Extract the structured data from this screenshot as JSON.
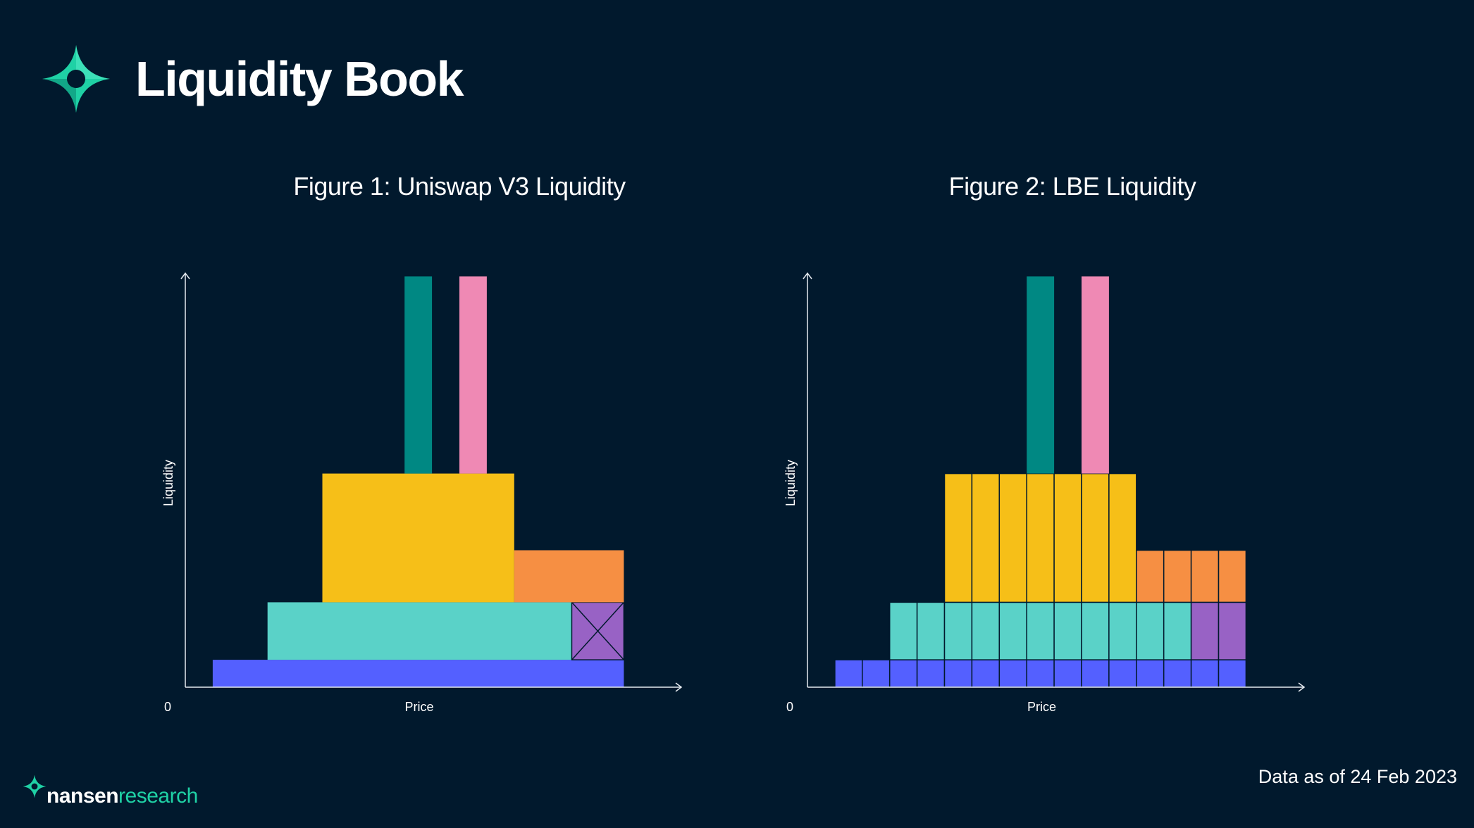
{
  "header": {
    "title": "Liquidity Book"
  },
  "footer": {
    "date_note": "Data as of 24 Feb 2023",
    "brand_name": "nansen",
    "brand_sub": "research"
  },
  "colors": {
    "background": "#01192d",
    "brand": "#1fd1a5",
    "axis": "#e6ebf0",
    "blue": "#5460ff",
    "turquoise": "#5ad2c8",
    "yellow": "#f6bf18",
    "orange": "#f68f43",
    "purple": "#9862c5",
    "teal": "#008883",
    "pink": "#ef89b4"
  },
  "chart_data": [
    {
      "type": "bar",
      "id": "fig1",
      "title": "Figure 1: Uniswap V3 Liquidity",
      "xlabel": "Price",
      "ylabel": "Liquidity",
      "origin_label": "0",
      "xlim": [
        0,
        18
      ],
      "ylim": [
        0,
        15
      ],
      "binned": false,
      "ranges": [
        {
          "name": "blue",
          "x0": 1,
          "x1": 16,
          "y0": 0,
          "y1": 1
        },
        {
          "name": "turquoise",
          "x0": 3,
          "x1": 14.1,
          "y0": 1,
          "y1": 3.1
        },
        {
          "name": "purple",
          "x0": 14.1,
          "x1": 16,
          "y0": 1,
          "y1": 3.1,
          "crossed": true
        },
        {
          "name": "yellow",
          "x0": 5,
          "x1": 12,
          "y0": 3.1,
          "y1": 7.8
        },
        {
          "name": "orange",
          "x0": 12,
          "x1": 16,
          "y0": 3.1,
          "y1": 5
        },
        {
          "name": "teal",
          "x0": 8,
          "x1": 9,
          "y0": 7.8,
          "y1": 15
        },
        {
          "name": "pink",
          "x0": 10,
          "x1": 11,
          "y0": 7.8,
          "y1": 15
        }
      ]
    },
    {
      "type": "bar",
      "id": "fig2",
      "title": "Figure 2: LBE Liquidity",
      "xlabel": "Price",
      "ylabel": "Liquidity",
      "origin_label": "0",
      "xlim": [
        0,
        18
      ],
      "ylim": [
        0,
        15
      ],
      "binned": true,
      "ranges": [
        {
          "name": "blue",
          "x0": 1,
          "x1": 16,
          "y0": 0,
          "y1": 1
        },
        {
          "name": "turquoise",
          "x0": 3,
          "x1": 14,
          "y0": 1,
          "y1": 3.1
        },
        {
          "name": "purple",
          "x0": 14,
          "x1": 16,
          "y0": 1,
          "y1": 3.1
        },
        {
          "name": "yellow",
          "x0": 5,
          "x1": 12,
          "y0": 3.1,
          "y1": 7.8
        },
        {
          "name": "orange",
          "x0": 12,
          "x1": 16,
          "y0": 3.1,
          "y1": 5
        },
        {
          "name": "teal",
          "x0": 8,
          "x1": 9,
          "y0": 7.8,
          "y1": 15
        },
        {
          "name": "pink",
          "x0": 10,
          "x1": 11,
          "y0": 7.8,
          "y1": 15
        }
      ]
    }
  ]
}
